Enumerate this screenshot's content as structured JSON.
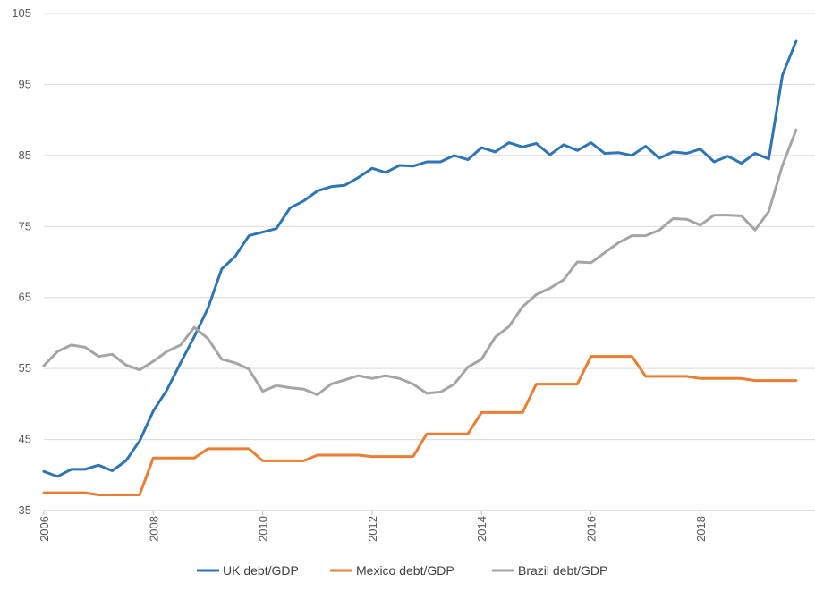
{
  "chart_data": {
    "type": "line",
    "title": "",
    "xlabel": "",
    "ylabel": "",
    "ylim": [
      35,
      105
    ],
    "xlim": [
      2006,
      2019.85
    ],
    "y_ticks": [
      35,
      45,
      55,
      65,
      75,
      85,
      95,
      105
    ],
    "x_ticks": [
      2006,
      2008,
      2010,
      2012,
      2014,
      2016,
      2018
    ],
    "grid": "horizontal",
    "legend_position": "bottom",
    "x": [
      2006.0,
      2006.25,
      2006.5,
      2006.75,
      2007.0,
      2007.25,
      2007.5,
      2007.75,
      2008.0,
      2008.25,
      2008.5,
      2008.75,
      2009.0,
      2009.25,
      2009.5,
      2009.75,
      2010.0,
      2010.25,
      2010.5,
      2010.75,
      2011.0,
      2011.25,
      2011.5,
      2011.75,
      2012.0,
      2012.25,
      2012.5,
      2012.75,
      2013.0,
      2013.25,
      2013.5,
      2013.75,
      2014.0,
      2014.25,
      2014.5,
      2014.75,
      2015.0,
      2015.25,
      2015.5,
      2015.75,
      2016.0,
      2016.25,
      2016.5,
      2016.75,
      2017.0,
      2017.25,
      2017.5,
      2017.75,
      2018.0,
      2018.25,
      2018.5,
      2018.75,
      2019.0,
      2019.25,
      2019.5,
      2019.75
    ],
    "series": [
      {
        "name": "UK debt/GDP",
        "color": "#2e75b6",
        "values": [
          40.5,
          39.8,
          40.8,
          40.8,
          41.4,
          40.6,
          42.0,
          44.8,
          49.0,
          52.0,
          55.8,
          59.5,
          63.5,
          69.0,
          70.8,
          73.7,
          74.2,
          74.7,
          77.6,
          78.6,
          80.0,
          80.6,
          80.8,
          81.9,
          83.2,
          82.6,
          83.6,
          83.5,
          84.1,
          84.1,
          85.0,
          84.4,
          86.1,
          85.5,
          86.8,
          86.2,
          86.7,
          85.1,
          86.5,
          85.7,
          86.8,
          85.3,
          85.4,
          85.0,
          86.3,
          84.6,
          85.5,
          85.3,
          85.9,
          84.1,
          84.9,
          83.9,
          85.3,
          84.5,
          96.3,
          101.1
        ]
      },
      {
        "name": "Mexico debt/GDP",
        "color": "#ed7d31",
        "values": [
          37.5,
          37.5,
          37.5,
          37.5,
          37.2,
          37.2,
          37.2,
          37.2,
          42.4,
          42.4,
          42.4,
          42.4,
          43.7,
          43.7,
          43.7,
          43.7,
          42.0,
          42.0,
          42.0,
          42.0,
          42.8,
          42.8,
          42.8,
          42.8,
          42.6,
          42.6,
          42.6,
          42.6,
          45.8,
          45.8,
          45.8,
          45.8,
          48.8,
          48.8,
          48.8,
          48.8,
          52.8,
          52.8,
          52.8,
          52.8,
          56.7,
          56.7,
          56.7,
          56.7,
          53.9,
          53.9,
          53.9,
          53.9,
          53.6,
          53.6,
          53.6,
          53.6,
          53.3,
          53.3,
          53.3,
          53.3
        ]
      },
      {
        "name": "Brazil debt/GDP",
        "color": "#a5a5a5",
        "values": [
          55.4,
          57.4,
          58.3,
          58.0,
          56.7,
          57.0,
          55.5,
          54.8,
          56.0,
          57.4,
          58.3,
          60.8,
          59.2,
          56.3,
          55.8,
          54.9,
          51.8,
          52.6,
          52.3,
          52.1,
          51.3,
          52.8,
          53.4,
          54.0,
          53.6,
          54.0,
          53.6,
          52.8,
          51.5,
          51.7,
          52.8,
          55.2,
          56.3,
          59.4,
          60.9,
          63.7,
          65.4,
          66.3,
          67.5,
          70.0,
          69.9,
          71.3,
          72.7,
          73.7,
          73.7,
          74.5,
          76.1,
          76.0,
          75.2,
          76.6,
          76.6,
          76.5,
          74.5,
          77.1,
          83.6,
          88.6
        ]
      }
    ]
  }
}
